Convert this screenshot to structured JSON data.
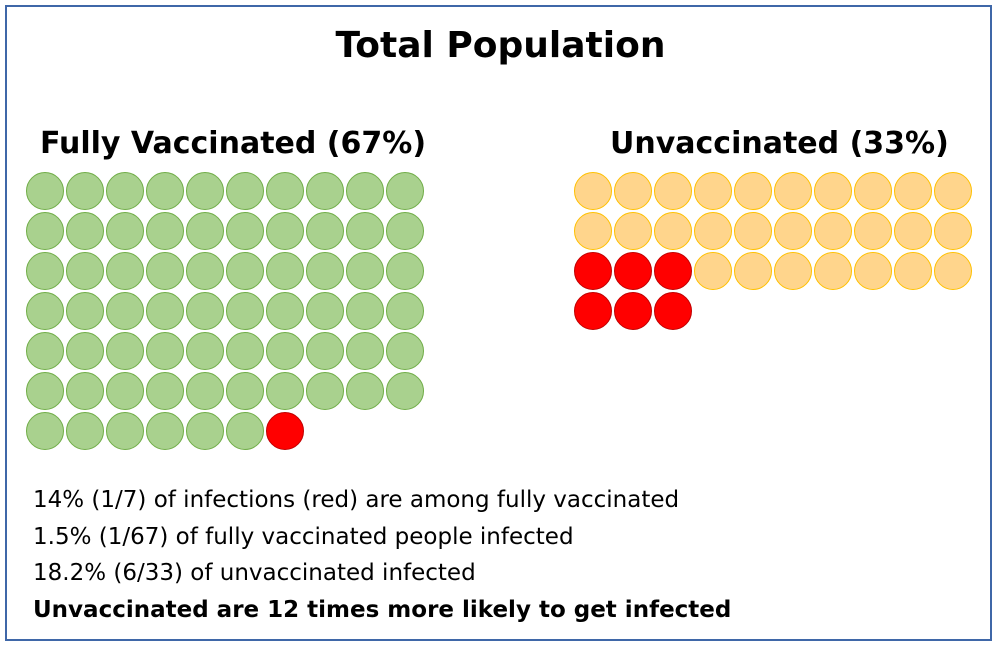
{
  "title": "Total Population",
  "groups": [
    {
      "label": "Fully Vaccinated (67%)",
      "total": 67,
      "infected": 1,
      "fill": "#a9d18e",
      "stroke": "#70ad47"
    },
    {
      "label": "Unvaccinated (33%)",
      "total": 33,
      "infected": 6,
      "fill": "#ffd58c",
      "stroke": "#ffc000"
    }
  ],
  "infected_color": "#ff0000",
  "stats": [
    "14% (1/7) of infections (red) are among fully vaccinated",
    "1.5% (1/67) of fully vaccinated people infected",
    "18.2% (6/33) of unvaccinated infected"
  ],
  "conclusion": "Unvaccinated are 12 times more likely to get infected"
}
